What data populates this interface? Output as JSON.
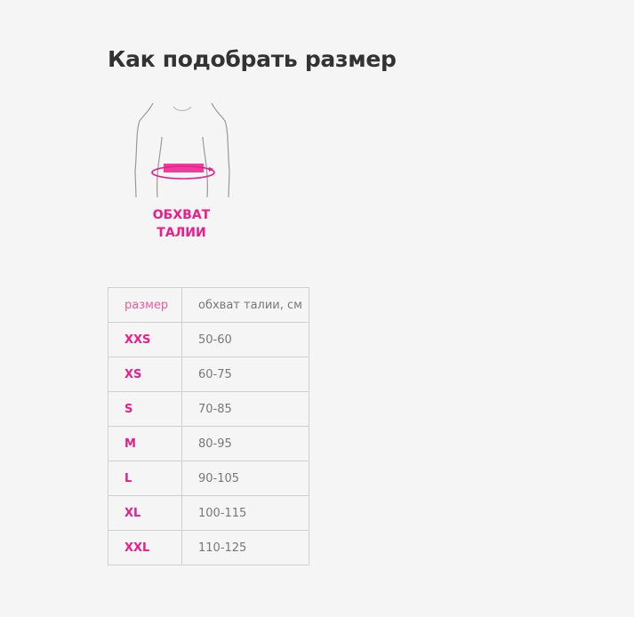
{
  "title": "Как подобрать размер",
  "illustration": {
    "icon": "waist-measure-icon",
    "caption_line1": "ОБХВАТ",
    "caption_line2": "ТАЛИИ",
    "accent": "#ec1c8c"
  },
  "table": {
    "headers": [
      "размер",
      "обхват талии, см"
    ],
    "rows": [
      {
        "size": "XXS",
        "waist": "50-60"
      },
      {
        "size": "XS",
        "waist": "60-75"
      },
      {
        "size": "S",
        "waist": "70-85"
      },
      {
        "size": "M",
        "waist": "80-95"
      },
      {
        "size": "L",
        "waist": "90-105"
      },
      {
        "size": "XL",
        "waist": "100-115"
      },
      {
        "size": "XXL",
        "waist": "110-125"
      }
    ]
  }
}
